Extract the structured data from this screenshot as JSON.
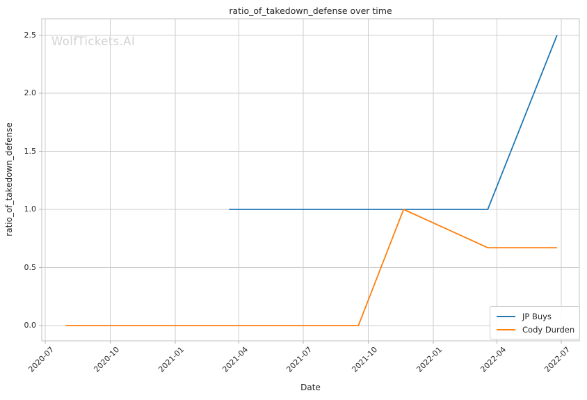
{
  "chart_data": {
    "type": "line",
    "title": "ratio_of_takedown_defense over time",
    "xlabel": "Date",
    "ylabel": "ratio_of_takedown_defense",
    "watermark": "WolfTickets.AI",
    "grid": true,
    "legend_location": "lower right",
    "x_ticks": [
      "2020-07",
      "2020-10",
      "2021-01",
      "2021-04",
      "2021-07",
      "2021-10",
      "2022-01",
      "2022-04",
      "2022-07"
    ],
    "y_ticks": [
      0.0,
      0.5,
      1.0,
      1.5,
      2.0,
      2.5
    ],
    "y_tick_labels": [
      "0.0",
      "0.5",
      "1.0",
      "1.5",
      "2.0",
      "2.5"
    ],
    "ylim": [
      -0.125,
      2.625
    ],
    "xlim": [
      "2020-06-26",
      "2022-07-27"
    ],
    "series": [
      {
        "name": "JP Buys",
        "color": "#1f77b4",
        "points": [
          [
            "2021-03-18",
            1.0
          ],
          [
            "2022-03-19",
            1.0
          ],
          [
            "2022-06-25",
            2.5
          ]
        ]
      },
      {
        "name": "Cody Durden",
        "color": "#ff7f0e",
        "points": [
          [
            "2020-07-30",
            0.0
          ],
          [
            "2021-09-17",
            0.0
          ],
          [
            "2021-11-20",
            1.0
          ],
          [
            "2022-03-19",
            0.67
          ],
          [
            "2022-06-25",
            0.67
          ]
        ]
      }
    ]
  }
}
